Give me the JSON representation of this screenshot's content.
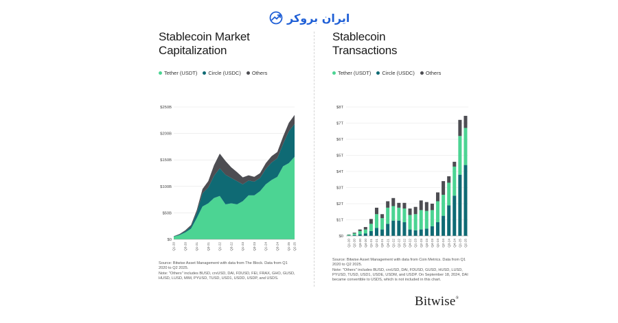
{
  "watermark": {
    "text": "ایران بروکر",
    "icon": "trend-arrow-icon",
    "color": "#1f5fd6"
  },
  "brand": {
    "name": "Bitwise",
    "mark": "®"
  },
  "colors": {
    "tether": "#4cd493",
    "circle": "#0f6a74",
    "others": "#4d4d52"
  },
  "legend": [
    {
      "label": "Tether (USDT)",
      "color": "#4cd493"
    },
    {
      "label": "Circle (USDC)",
      "color": "#0f6a74"
    },
    {
      "label": "Others",
      "color": "#4d4d52"
    }
  ],
  "chart_data": [
    {
      "type": "area",
      "stacked": true,
      "title_line1": "Stablecoin Market",
      "title_line2": "Capitalization",
      "yticks": [
        "$0",
        "$50B",
        "$100B",
        "$150B",
        "$200B",
        "$250B"
      ],
      "ylim": [
        0,
        250
      ],
      "x": [
        "Q1-20",
        "Q2-20",
        "Q3-20",
        "Q4-20",
        "Q1-21",
        "Q2-21",
        "Q3-21",
        "Q4-21",
        "Q1-22",
        "Q2-22",
        "Q3-22",
        "Q4-22",
        "Q1-23",
        "Q2-23",
        "Q3-23",
        "Q4-23",
        "Q1-24",
        "Q2-24",
        "Q3-24",
        "Q4-24",
        "Q1-25",
        "Q2-25"
      ],
      "xtick_labels": [
        "Q1-20",
        "Q3-20",
        "Q1-21",
        "Q3-21",
        "Q1-22",
        "Q3-22",
        "Q1-23",
        "Q3-23",
        "Q1-24",
        "Q3-24",
        "Q1-25",
        "Q2-25"
      ],
      "series": [
        {
          "name": "Tether (USDT)",
          "values": [
            5,
            8,
            13,
            20,
            40,
            62,
            68,
            78,
            82,
            66,
            68,
            66,
            72,
            83,
            83,
            91,
            104,
            112,
            118,
            138,
            144,
            156
          ]
        },
        {
          "name": "Circle (USDC)",
          "values": [
            0.5,
            1,
            2,
            4,
            10,
            25,
            30,
            42,
            52,
            56,
            48,
            44,
            32,
            28,
            26,
            25,
            29,
            33,
            35,
            42,
            60,
            62
          ]
        },
        {
          "name": "Others",
          "values": [
            0.5,
            1,
            2,
            3,
            5,
            8,
            12,
            20,
            28,
            26,
            20,
            17,
            13,
            10,
            9,
            9,
            11,
            12,
            12,
            14,
            16,
            17
          ]
        }
      ],
      "source": "Source: Bitwise Asset Management with data from The Block. Data from Q1 2020 to Q2 2025.",
      "note": "Note: \"Others\" includes BUSD, crvUSD, DAI, FDUSD, FEI, FRAX, GHO, GUSD, HUSD, LUSD, MIM, PYUSD, TUSD, USD1, USDD, USDP, and USDS."
    },
    {
      "type": "bar",
      "stacked": true,
      "title_line1": "Stablecoin",
      "title_line2": "Transactions",
      "yticks": [
        "$0",
        "$1T",
        "$2T",
        "$3T",
        "$4T",
        "$5T",
        "$6T",
        "$7T",
        "$8T"
      ],
      "ylim": [
        0,
        8
      ],
      "categories": [
        "Q1-20",
        "Q2-20",
        "Q3-20",
        "Q4-20",
        "Q1-21",
        "Q2-21",
        "Q3-21",
        "Q4-21",
        "Q1-22",
        "Q2-22",
        "Q3-22",
        "Q4-22",
        "Q1-23",
        "Q2-23",
        "Q3-23",
        "Q4-23",
        "Q1-24",
        "Q2-24",
        "Q3-24",
        "Q4-24",
        "Q1-25",
        "Q2-25"
      ],
      "xtick_labels": [
        "Q1-20",
        "Q2-20",
        "Q3-20",
        "Q4-20",
        "Q1-21",
        "Q2-21",
        "Q3-21",
        "Q4-21",
        "Q1-22",
        "Q2-22",
        "Q3-22",
        "Q4-22",
        "Q1-23",
        "Q2-23",
        "Q3-23",
        "Q4-23",
        "Q1-24",
        "Q2-24",
        "Q3-24",
        "Q4-24",
        "Q1-25",
        "Q2-25"
      ],
      "series": [
        {
          "name": "Tether (USDT)",
          "values": [
            0.05,
            0.1,
            0.2,
            0.25,
            0.45,
            0.85,
            0.7,
            1.0,
            0.9,
            0.8,
            0.85,
            0.9,
            1.0,
            1.2,
            1.1,
            1.0,
            1.3,
            1.3,
            1.4,
            1.8,
            2.4,
            2.3
          ]
        },
        {
          "name": "Circle (USDC)",
          "values": [
            0.02,
            0.05,
            0.1,
            0.15,
            0.3,
            0.5,
            0.4,
            0.75,
            0.95,
            0.95,
            0.85,
            0.4,
            0.35,
            0.4,
            0.45,
            0.6,
            0.85,
            1.25,
            1.9,
            2.5,
            3.8,
            4.4
          ]
        },
        {
          "name": "Others",
          "values": [
            0.02,
            0.05,
            0.1,
            0.15,
            0.3,
            0.4,
            0.25,
            0.4,
            0.5,
            0.3,
            0.35,
            0.4,
            0.45,
            0.6,
            0.55,
            0.4,
            0.55,
            0.85,
            0.4,
            0.3,
            1.0,
            0.75
          ]
        }
      ],
      "source": "Source: Bitwise Asset Management with data from Coin Metrics. Data from Q1 2020 to Q2 2025.",
      "note": "Note: \"Others\" includes BUSD, crvUSD, DAI, FDUSD, GUSD, HUSD, LUSD, PYUSD, TUSD, USD1, USDE, USDM, and USDP. On September 18, 2024, DAI became convertible to USDS, which is not included in this chart."
    }
  ]
}
